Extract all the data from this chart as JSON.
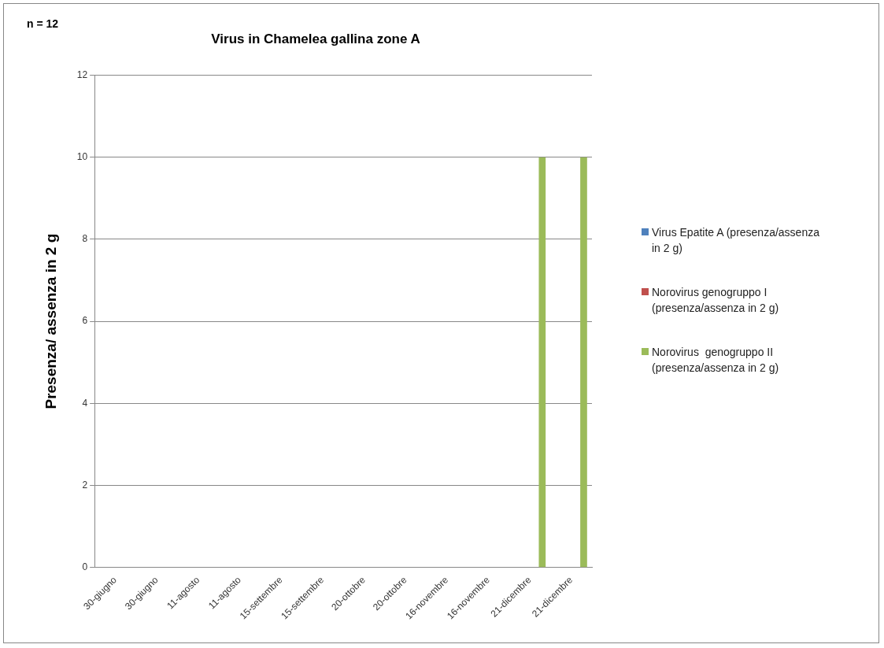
{
  "chart_data": {
    "type": "bar",
    "title": "Virus in Chamelea gallina zone A",
    "ylabel": "Presenza/ assenza in 2 g",
    "annotations": [
      "n = 12"
    ],
    "categories": [
      "30-giugno",
      "30-giugno",
      "11-agosto",
      "11-agosto",
      "15-settembre",
      "15-settembre",
      "20-ottobre",
      "20-ottobre",
      "16-novembre",
      "16-novembre",
      "21-dicembre",
      "21-dicembre"
    ],
    "series": [
      {
        "name": "Virus Epatite A (presenza/assenza in 2 g)",
        "color": "#4f81bd",
        "values": [
          0,
          0,
          0,
          0,
          0,
          0,
          0,
          0,
          0,
          0,
          0,
          0
        ]
      },
      {
        "name": "Norovirus genogruppo I (presenza/assenza in 2 g)",
        "color": "#c0504d",
        "values": [
          0,
          0,
          0,
          0,
          0,
          0,
          0,
          0,
          0,
          0,
          0,
          0
        ]
      },
      {
        "name": "Norovirus  genogruppo II (presenza/assenza in 2 g)",
        "color": "#9bbb59",
        "values": [
          0,
          0,
          0,
          0,
          0,
          0,
          0,
          0,
          0,
          0,
          10,
          10
        ]
      }
    ],
    "ylim": [
      0,
      12
    ],
    "yticks": [
      0,
      2,
      4,
      6,
      8,
      10,
      12
    ],
    "grid": "y",
    "legend": "right"
  }
}
